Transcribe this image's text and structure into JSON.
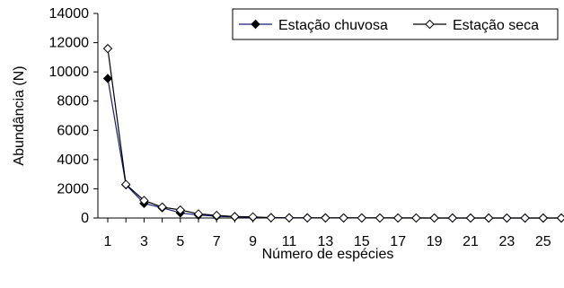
{
  "chart_data": {
    "type": "line",
    "xlabel": "Número de espécies",
    "ylabel": "Abundância (N)",
    "x": [
      1,
      2,
      3,
      4,
      5,
      6,
      7,
      8,
      9,
      10,
      11,
      12,
      13,
      14,
      15,
      16,
      17,
      18,
      19,
      20,
      21,
      22,
      23,
      24,
      25,
      26
    ],
    "x_tick_labels": [
      "1",
      "3",
      "5",
      "7",
      "9",
      "11",
      "13",
      "15",
      "17",
      "19",
      "21",
      "23",
      "25"
    ],
    "ylim": [
      0,
      14000
    ],
    "y_ticks": [
      0,
      2000,
      4000,
      6000,
      8000,
      10000,
      12000,
      14000
    ],
    "y_tick_labels": [
      "0",
      "2000",
      "4000",
      "6000",
      "8000",
      "10000",
      "12000",
      "14000"
    ],
    "grid": false,
    "legend_position": "top-right",
    "series": [
      {
        "name": "Estação chuvosa",
        "color": "#1a1a7a",
        "marker": "filled-diamond",
        "values": [
          9550,
          2280,
          1000,
          700,
          350,
          200,
          120,
          80,
          50,
          30,
          20,
          15,
          12,
          10,
          8,
          6,
          5,
          4,
          3,
          3,
          2,
          2,
          1,
          1,
          1,
          1
        ]
      },
      {
        "name": "Estação seca",
        "color": "#000000",
        "marker": "open-diamond",
        "values": [
          11600,
          2300,
          1200,
          750,
          550,
          280,
          180,
          100,
          80,
          20,
          15,
          10,
          8,
          6,
          5,
          4,
          3,
          3,
          2,
          2,
          1,
          1,
          1,
          1,
          1,
          1
        ]
      }
    ]
  }
}
